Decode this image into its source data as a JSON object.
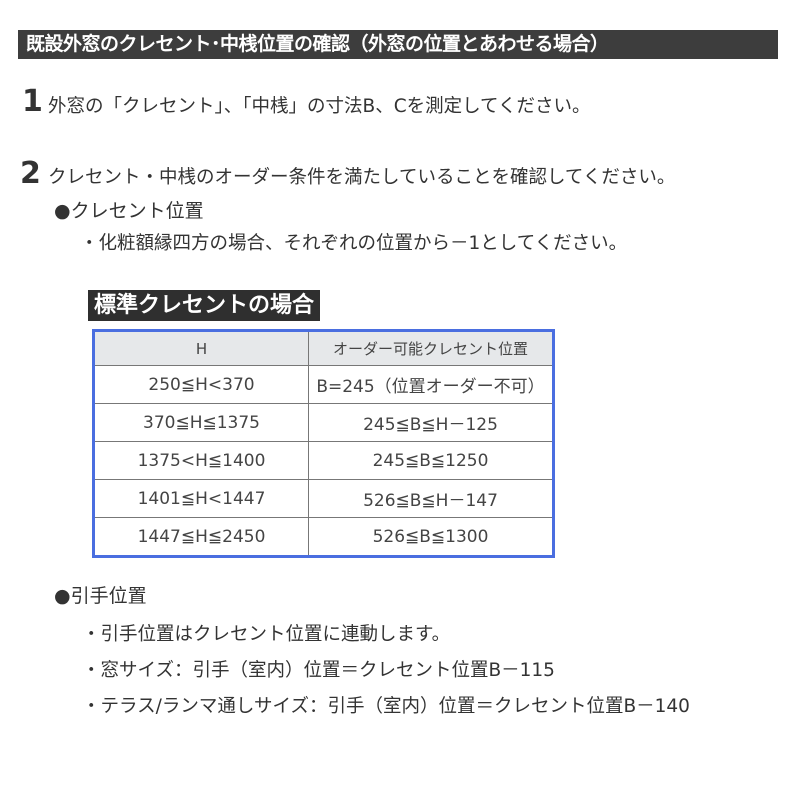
{
  "title": "既設外窓のクレセント･中桟位置の確認（外窓の位置とあわせる場合）",
  "steps": [
    {
      "number": "1",
      "text": "外窓の「クレセント」、「中桟」の寸法B、Cを測定してください。"
    },
    {
      "number": "2",
      "text": "クレセント・中桟のオーダー条件を満たしていることを確認してください。"
    }
  ],
  "crescent_section": {
    "heading": "●クレセント位置",
    "bullets": [
      "・化粧額縁四方の場合、それぞれの位置から－1としてください。"
    ]
  },
  "table": {
    "label": "標準クレセントの場合",
    "headers": [
      "H",
      "オーダー可能クレセント位置"
    ],
    "rows": [
      [
        "250≦H<370",
        "B=245（位置オーダー不可）"
      ],
      [
        "370≦H≦1375",
        "245≦B≦H－125"
      ],
      [
        "1375<H≦1400",
        "245≦B≦1250"
      ],
      [
        "1401≦H<1447",
        "526≦B≦H－147"
      ],
      [
        "1447≦H≦2450",
        "526≦B≦1300"
      ]
    ]
  },
  "handle_section": {
    "heading": "●引手位置",
    "bullets": [
      "・引手位置はクレセント位置に連動します。",
      "・窓サイズ：引手（室内）位置＝クレセント位置B－115",
      "・テラス/ランマ通しサイズ：引手（室内）位置＝クレセント位置B－140"
    ]
  },
  "colors": {
    "title_bg": "#3d3d3d",
    "table_border": "#4a6ee0",
    "header_bg": "#e6e8ea"
  }
}
